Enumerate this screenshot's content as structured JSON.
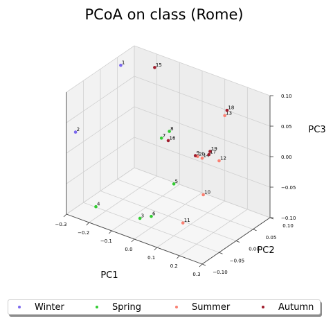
{
  "chart_data": {
    "type": "scatter",
    "title": "PCoA on class (Rome)",
    "xlabel": "PC1",
    "ylabel": "PC2",
    "zlabel": "PC3",
    "xlim": [
      -0.3,
      0.3
    ],
    "ylim": [
      -0.1,
      0.1
    ],
    "zlim": [
      -0.1,
      0.1
    ],
    "x_ticks": [
      "−0.3",
      "−0.2",
      "−0.1",
      "0.0",
      "0.1",
      "0.2",
      "0.3"
    ],
    "y_ticks": [
      "−0.10",
      "−0.05",
      "0.00",
      "0.05",
      "0.10"
    ],
    "z_ticks": [
      "−0.10",
      "−0.05",
      "0.00",
      "0.05",
      "0.10"
    ],
    "grid": true,
    "legend_position": "bottom",
    "series": [
      {
        "name": "Winter",
        "color": "#7b68ee",
        "points": [
          {
            "label": "1",
            "x": -0.18,
            "y": -0.02,
            "z": 0.13
          },
          {
            "label": "2",
            "x": -0.26,
            "y": -0.1,
            "z": 0.04
          }
        ]
      },
      {
        "name": "Spring",
        "color": "#32cd32",
        "points": [
          {
            "label": "3",
            "x": -0.02,
            "y": -0.07,
            "z": -0.08
          },
          {
            "label": "4",
            "x": -0.17,
            "y": -0.1,
            "z": -0.07
          },
          {
            "label": "5",
            "x": 0.01,
            "y": 0.01,
            "z": -0.05
          },
          {
            "label": "6",
            "x": 0.03,
            "y": -0.07,
            "z": -0.07
          },
          {
            "label": "7",
            "x": -0.09,
            "y": 0.04,
            "z": 0.0
          },
          {
            "label": "8",
            "x": -0.07,
            "y": 0.05,
            "z": 0.01
          }
        ]
      },
      {
        "name": "Summer",
        "color": "#fa8072",
        "points": [
          {
            "label": "10",
            "x": 0.14,
            "y": 0.01,
            "z": -0.05
          },
          {
            "label": "11",
            "x": 0.2,
            "y": -0.09,
            "z": -0.05
          },
          {
            "label": "12",
            "x": 0.12,
            "y": 0.07,
            "z": -0.02
          },
          {
            "label": "13",
            "x": 0.1,
            "y": 0.1,
            "z": 0.04
          },
          {
            "label": "14",
            "x": 0.06,
            "y": 0.06,
            "z": -0.02
          },
          {
            "label": "20",
            "x": 0.04,
            "y": 0.06,
            "z": -0.02
          }
        ]
      },
      {
        "name": "Autumn",
        "color": "#a01c2c",
        "points": [
          {
            "label": "15",
            "x": -0.15,
            "y": 0.06,
            "z": 0.1
          },
          {
            "label": "16",
            "x": -0.06,
            "y": 0.04,
            "z": 0.0
          },
          {
            "label": "17",
            "x": 0.09,
            "y": 0.06,
            "z": -0.01
          },
          {
            "label": "18",
            "x": 0.11,
            "y": 0.1,
            "z": 0.05
          },
          {
            "label": "19",
            "x": 0.08,
            "y": 0.07,
            "z": -0.01
          },
          {
            "label": "9",
            "x": 0.03,
            "y": 0.06,
            "z": -0.02
          }
        ]
      }
    ]
  }
}
